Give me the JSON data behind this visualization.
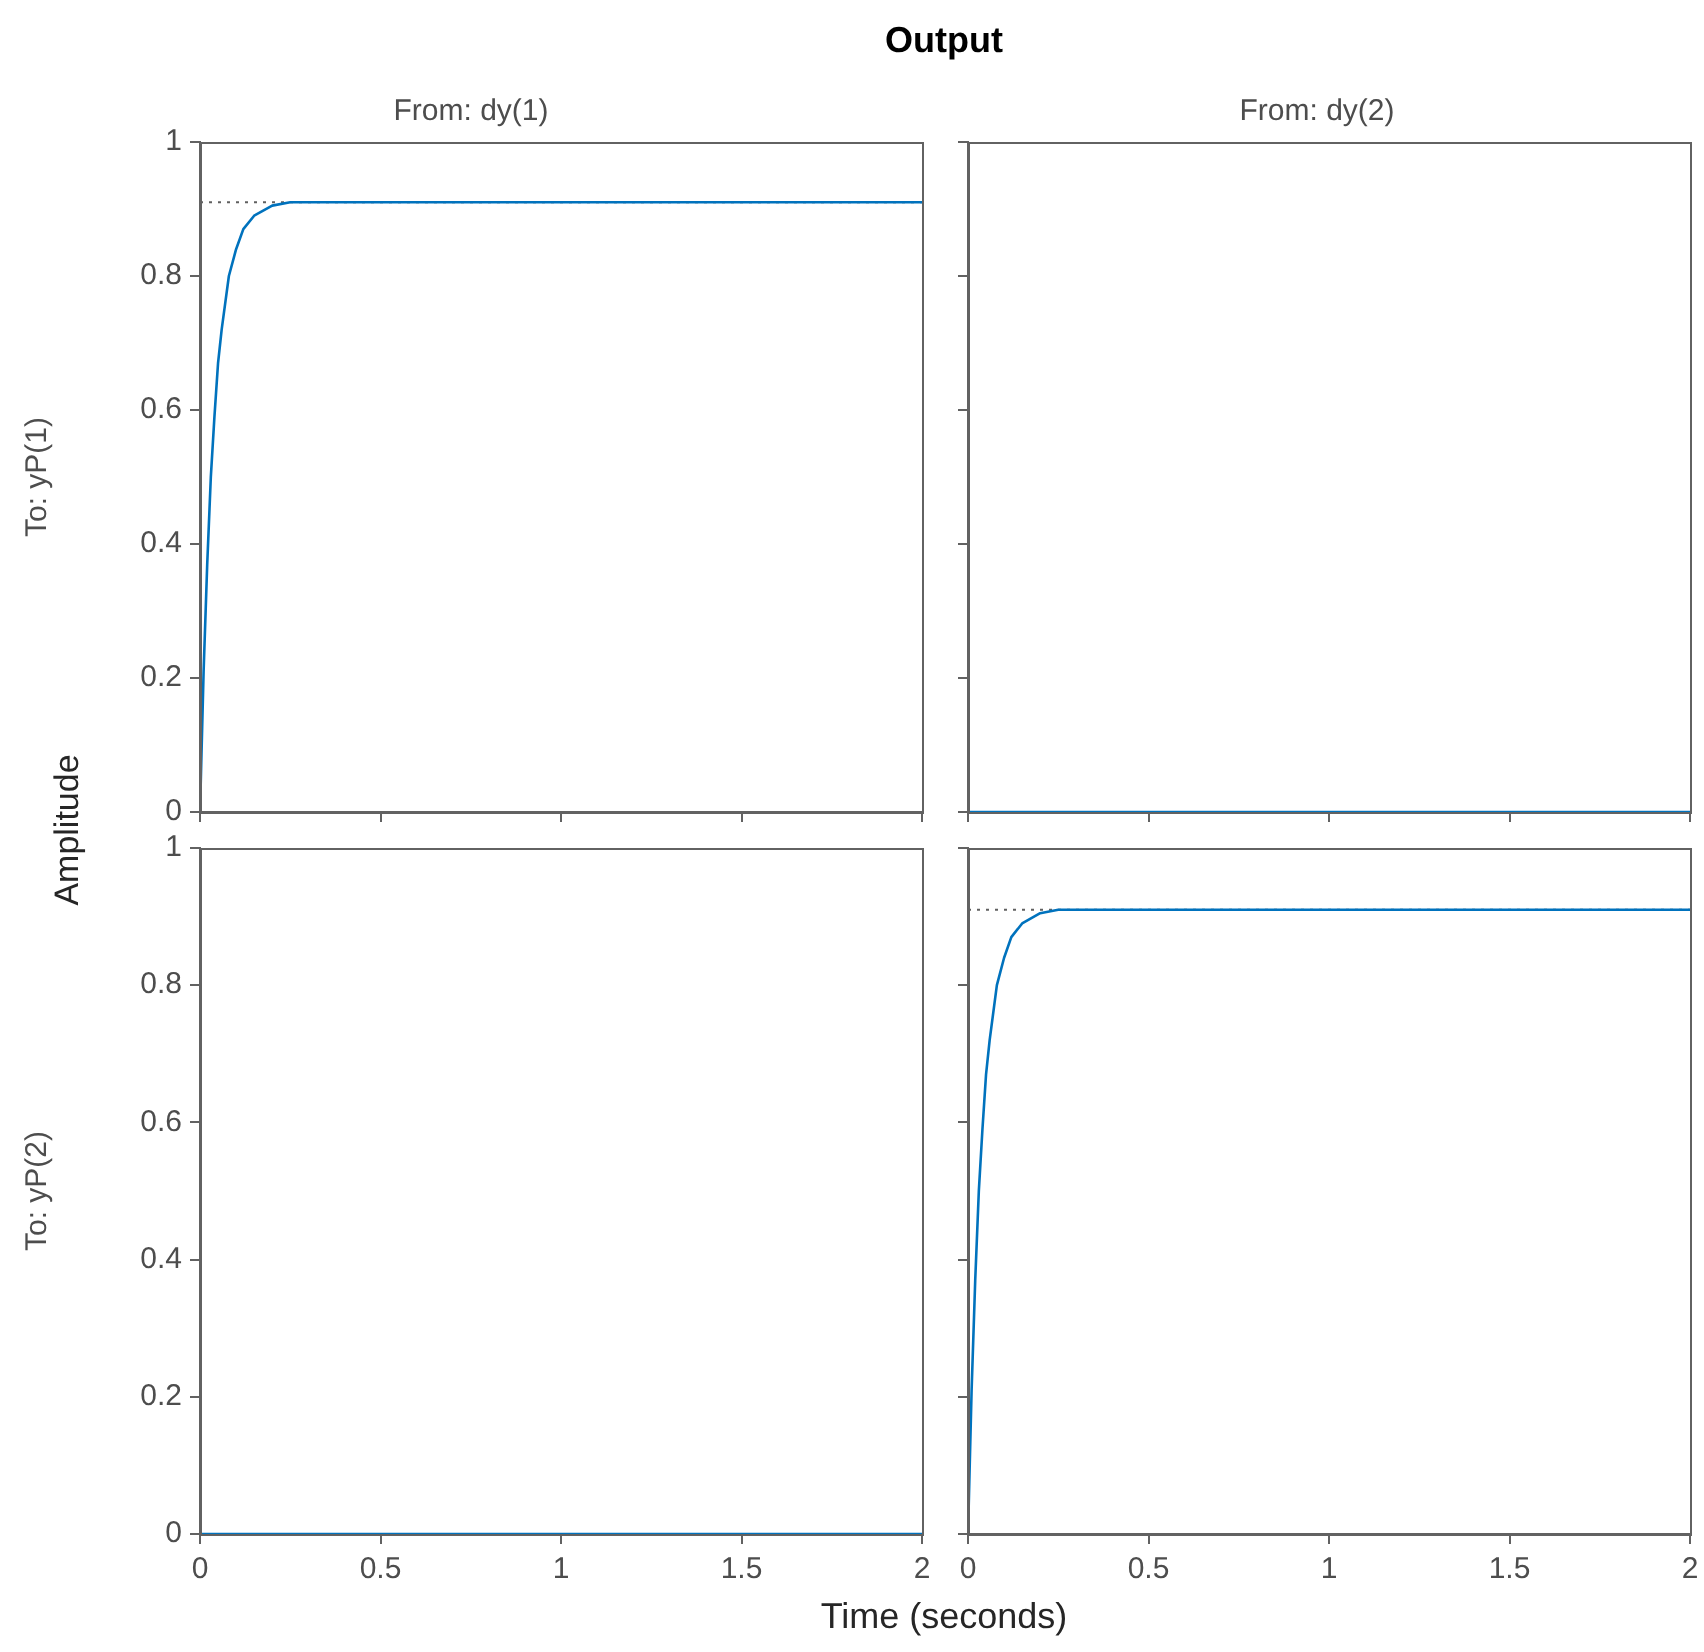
{
  "chart_data": [
    {
      "type": "line",
      "title": "From: dy(1)",
      "ylabel": "To: yP(1)",
      "annotations": [
        "Output",
        "Amplitude",
        "Time (seconds)"
      ],
      "tick_labels": "y",
      "series": [
        {
          "color": "#0072bd",
          "x": [
            0,
            0.01,
            0.02,
            0.03,
            0.04,
            0.05,
            0.06,
            0.08,
            0.1,
            0.12,
            0.15,
            0.2,
            0.25,
            0.3,
            2
          ],
          "values": [
            0,
            0.21,
            0.37,
            0.5,
            0.59,
            0.67,
            0.72,
            0.8,
            0.84,
            0.87,
            0.89,
            0.905,
            0.91,
            0.91,
            0.91
          ]
        }
      ],
      "ref_lines": [
        {
          "axis": "y",
          "value": 0.91,
          "color": "#606060",
          "line_style": "dotted"
        }
      ],
      "xlim": [
        0,
        2
      ],
      "xticks": [
        0,
        0.5,
        1,
        1.5,
        2
      ],
      "ylim": [
        0,
        1
      ],
      "yticks": [
        0,
        0.2,
        0.4,
        0.6,
        0.8,
        1
      ]
    },
    {
      "type": "line",
      "title": "From: dy(2)",
      "tick_labels": false,
      "series": [
        {
          "color": "#0072bd",
          "x": [
            0,
            2
          ],
          "values": [
            0,
            0
          ]
        }
      ],
      "xlim": [
        0,
        2
      ],
      "xticks": [
        0,
        0.5,
        1,
        1.5,
        2
      ],
      "ylim": [
        0,
        1
      ],
      "yticks": [
        0,
        0.2,
        0.4,
        0.6,
        0.8,
        1
      ]
    },
    {
      "type": "line",
      "ylabel": "To: yP(2)",
      "series": [
        {
          "color": "#0072bd",
          "x": [
            0,
            2
          ],
          "values": [
            0,
            0
          ]
        }
      ],
      "xlim": [
        0,
        2
      ],
      "xticks": [
        0,
        0.5,
        1,
        1.5,
        2
      ],
      "ylim": [
        0,
        1
      ],
      "yticks": [
        0,
        0.2,
        0.4,
        0.6,
        0.8,
        1
      ]
    },
    {
      "type": "line",
      "tick_labels": "x",
      "series": [
        {
          "color": "#0072bd",
          "x": [
            0,
            0.01,
            0.02,
            0.03,
            0.04,
            0.05,
            0.06,
            0.08,
            0.1,
            0.12,
            0.15,
            0.2,
            0.25,
            0.3,
            2
          ],
          "values": [
            0,
            0.21,
            0.37,
            0.5,
            0.59,
            0.67,
            0.72,
            0.8,
            0.84,
            0.87,
            0.89,
            0.905,
            0.91,
            0.91,
            0.91
          ]
        }
      ],
      "ref_lines": [
        {
          "axis": "y",
          "value": 0.91,
          "color": "#606060",
          "line_style": "dotted"
        }
      ],
      "xlim": [
        0,
        2
      ],
      "xticks": [
        0,
        0.5,
        1,
        1.5,
        2
      ],
      "ylim": [
        0,
        1
      ],
      "yticks": [
        0,
        0.2,
        0.4,
        0.6,
        0.8,
        1
      ]
    }
  ]
}
